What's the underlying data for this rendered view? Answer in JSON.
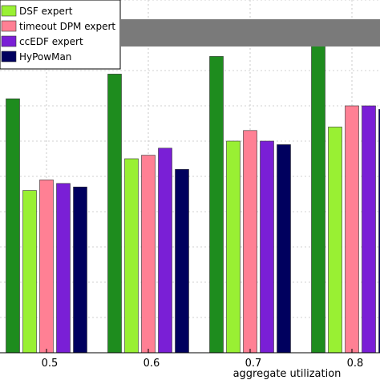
{
  "chart_data": {
    "type": "bar",
    "categories": [
      "0.5",
      "0.6",
      "0.7",
      "0.8"
    ],
    "xlabel": "aggregate utilization",
    "ylabel": "",
    "ylim": [
      0,
      1
    ],
    "grid": true,
    "legend_position": "top-left",
    "series": [
      {
        "name": "",
        "color": "#1e8c1e",
        "values": [
          0.72,
          0.79,
          0.84,
          0.92
        ]
      },
      {
        "name": "DSF expert",
        "color": "#99f033",
        "values": [
          0.46,
          0.55,
          0.6,
          0.64
        ]
      },
      {
        "name": "timeout DPM expert",
        "color": "#ff8094",
        "values": [
          0.49,
          0.56,
          0.63,
          0.7
        ]
      },
      {
        "name": "ccEDF expert",
        "color": "#7a1fd6",
        "values": [
          0.48,
          0.58,
          0.6,
          0.7
        ]
      },
      {
        "name": "HyPowMan",
        "color": "#00005e",
        "values": [
          0.47,
          0.52,
          0.59,
          0.69
        ]
      }
    ]
  }
}
